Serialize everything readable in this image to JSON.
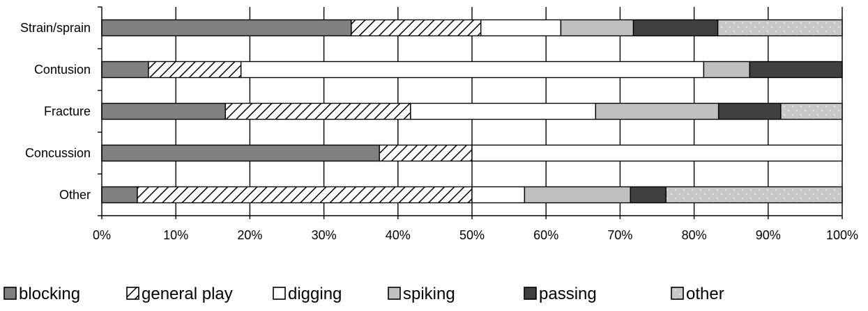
{
  "chart_data": {
    "type": "bar",
    "orientation": "horizontal",
    "stacked": "percent",
    "title": "",
    "xlabel": "",
    "ylabel": "",
    "xlim": [
      0,
      100
    ],
    "x_ticks": [
      "0%",
      "10%",
      "20%",
      "30%",
      "40%",
      "50%",
      "60%",
      "70%",
      "80%",
      "90%",
      "100%"
    ],
    "grid": "vertical",
    "legend_position": "bottom",
    "categories": [
      "Strain/sprain",
      "Contusion",
      "Fracture",
      "Concussion",
      "Other"
    ],
    "series": [
      {
        "name": "blocking",
        "values": [
          33.7,
          6.3,
          16.7,
          37.5,
          4.8
        ],
        "color": "#808080",
        "pattern": "solid"
      },
      {
        "name": "general play",
        "values": [
          17.5,
          12.5,
          25.0,
          12.5,
          45.2
        ],
        "color": "#ffffff",
        "pattern": "diagonal-hatch"
      },
      {
        "name": "digging",
        "values": [
          10.8,
          62.5,
          25.0,
          50.0,
          7.1
        ],
        "color": "#ffffff",
        "pattern": "solid"
      },
      {
        "name": "spiking",
        "values": [
          9.8,
          6.2,
          16.6,
          0,
          14.3
        ],
        "color": "#c0c0c0",
        "pattern": "solid"
      },
      {
        "name": "passing",
        "values": [
          11.4,
          12.5,
          8.4,
          0,
          4.8
        ],
        "color": "#404040",
        "pattern": "solid"
      },
      {
        "name": "other",
        "values": [
          16.8,
          0,
          8.3,
          0,
          23.8
        ],
        "color": "#c8c8c8",
        "pattern": "dots"
      }
    ]
  }
}
